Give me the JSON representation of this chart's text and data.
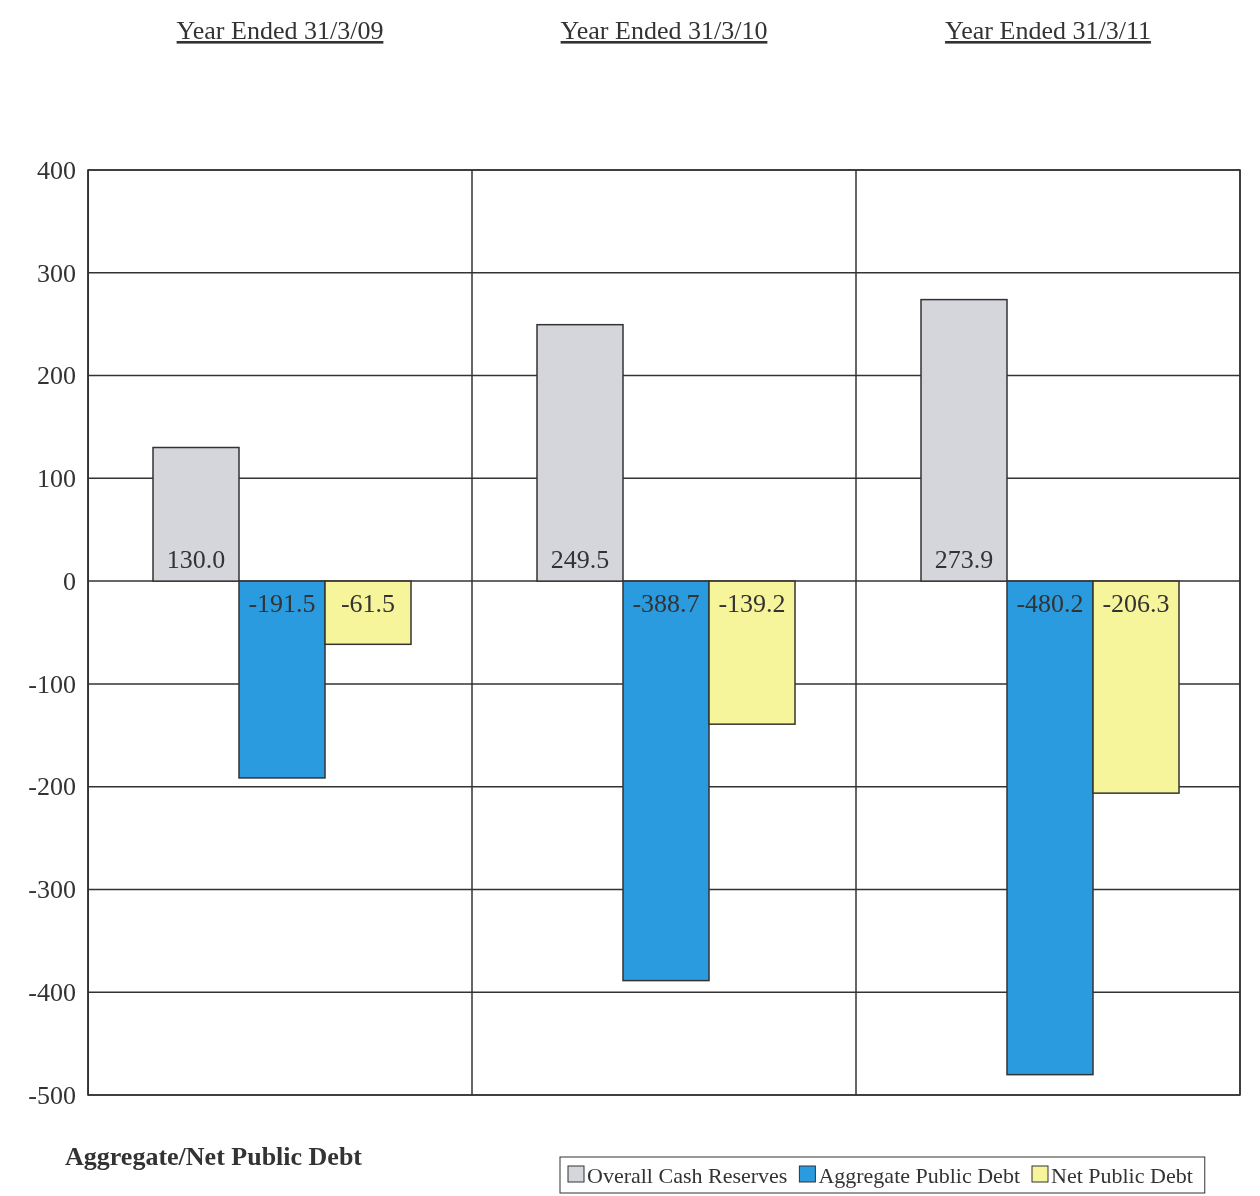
{
  "chart_data": {
    "type": "bar",
    "title": "Aggregate/Net Public Debt",
    "categories": [
      "Year Ended 31/3/09",
      "Year Ended 31/3/10",
      "Year Ended 31/3/11"
    ],
    "series": [
      {
        "name": "Overall Cash Reserves",
        "color": "#d4d6dc",
        "values": [
          130.0,
          249.5,
          273.9
        ],
        "value_labels": [
          "130.0",
          "249.5",
          "273.9"
        ]
      },
      {
        "name": "Aggregate Public Debt",
        "color": "#2b9be0",
        "values": [
          -191.5,
          -388.7,
          -480.2
        ],
        "value_labels": [
          "-191.5",
          "-388.7",
          "-480.2"
        ]
      },
      {
        "name": "Net Public Debt",
        "color": "#f7f59c",
        "values": [
          -61.5,
          -139.2,
          -206.3
        ],
        "value_labels": [
          "-61.5",
          "-139.2",
          "-206.3"
        ]
      }
    ],
    "ylim": [
      -500,
      400
    ],
    "yticks": [
      -500,
      -400,
      -300,
      -200,
      -100,
      0,
      100,
      200,
      300,
      400
    ],
    "grid": true,
    "legend": "bottom right"
  }
}
